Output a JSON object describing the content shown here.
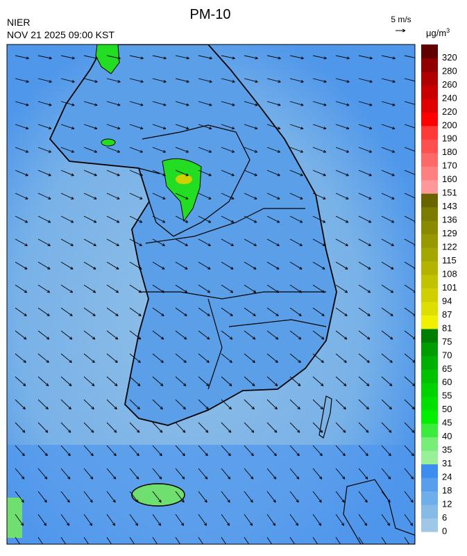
{
  "title": "PM-10",
  "agency": "NIER",
  "timestamp": "NOV 21 2025 09:00 KST",
  "wind_scale": "5 m/s",
  "unit": "μg/m",
  "unit_sup": "3",
  "colorbar": {
    "levels": [
      0,
      6,
      12,
      18,
      24,
      31,
      35,
      40,
      45,
      50,
      55,
      60,
      65,
      70,
      75,
      81,
      87,
      94,
      101,
      108,
      115,
      122,
      129,
      136,
      143,
      151,
      160,
      170,
      180,
      190,
      200,
      220,
      240,
      260,
      280,
      320
    ],
    "colors": [
      "#9ec8e6",
      "#86bbe8",
      "#6eaeea",
      "#579fec",
      "#3d8cf0",
      "#98f098",
      "#78ee78",
      "#3cec3c",
      "#00f000",
      "#00e000",
      "#00d200",
      "#00c200",
      "#00b000",
      "#009c00",
      "#007e00",
      "#f0f000",
      "#dede00",
      "#d0d000",
      "#c2c200",
      "#b4b400",
      "#a6a600",
      "#989800",
      "#8a8a00",
      "#7c7c00",
      "#6a6400",
      "#ff9898",
      "#ff8080",
      "#ff6868",
      "#ff5050",
      "#ff3838",
      "#ff0000",
      "#e00000",
      "#c80000",
      "#b00000",
      "#900000",
      "#600000"
    ]
  }
}
